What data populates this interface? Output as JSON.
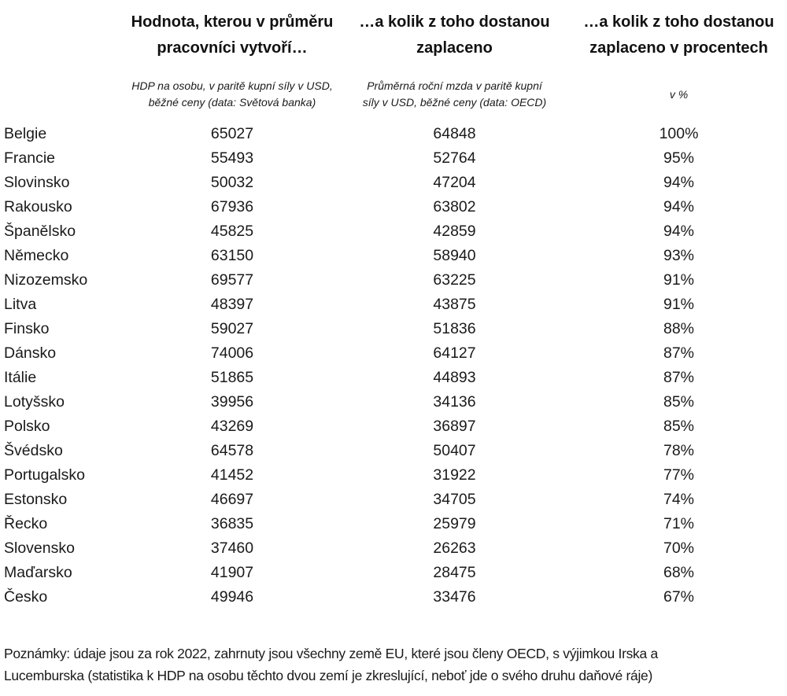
{
  "chart_data": {
    "type": "table",
    "column_headers": [
      {
        "title_lines": [
          "Hodnota, kterou v průměru",
          "pracovníci vytvoří…"
        ],
        "subtitle_lines": [
          "HDP na osobu, v paritě kupní síly v USD,",
          "běžné ceny (data: Světová banka)"
        ]
      },
      {
        "title_lines": [
          "…a kolik z toho dostanou",
          "zaplaceno"
        ],
        "subtitle_lines": [
          "Průměrná roční mzda v paritě kupní",
          "síly v USD, běžné ceny (data: OECD)"
        ]
      },
      {
        "title_lines": [
          "…a kolik z toho dostanou",
          "zaplaceno v procentech"
        ],
        "subtitle_lines": [
          "v %"
        ]
      }
    ],
    "rows": [
      {
        "country": "Belgie",
        "gdp": 65027,
        "wage": 64848,
        "pct": "100%"
      },
      {
        "country": "Francie",
        "gdp": 55493,
        "wage": 52764,
        "pct": "95%"
      },
      {
        "country": "Slovinsko",
        "gdp": 50032,
        "wage": 47204,
        "pct": "94%"
      },
      {
        "country": "Rakousko",
        "gdp": 67936,
        "wage": 63802,
        "pct": "94%"
      },
      {
        "country": "Španělsko",
        "gdp": 45825,
        "wage": 42859,
        "pct": "94%"
      },
      {
        "country": "Německo",
        "gdp": 63150,
        "wage": 58940,
        "pct": "93%"
      },
      {
        "country": "Nizozemsko",
        "gdp": 69577,
        "wage": 63225,
        "pct": "91%"
      },
      {
        "country": "Litva",
        "gdp": 48397,
        "wage": 43875,
        "pct": "91%"
      },
      {
        "country": "Finsko",
        "gdp": 59027,
        "wage": 51836,
        "pct": "88%"
      },
      {
        "country": "Dánsko",
        "gdp": 74006,
        "wage": 64127,
        "pct": "87%"
      },
      {
        "country": "Itálie",
        "gdp": 51865,
        "wage": 44893,
        "pct": "87%"
      },
      {
        "country": "Lotyšsko",
        "gdp": 39956,
        "wage": 34136,
        "pct": "85%"
      },
      {
        "country": "Polsko",
        "gdp": 43269,
        "wage": 36897,
        "pct": "85%"
      },
      {
        "country": "Švédsko",
        "gdp": 64578,
        "wage": 50407,
        "pct": "78%"
      },
      {
        "country": "Portugalsko",
        "gdp": 41452,
        "wage": 31922,
        "pct": "77%"
      },
      {
        "country": "Estonsko",
        "gdp": 46697,
        "wage": 34705,
        "pct": "74%"
      },
      {
        "country": "Řecko",
        "gdp": 36835,
        "wage": 25979,
        "pct": "71%"
      },
      {
        "country": "Slovensko",
        "gdp": 37460,
        "wage": 26263,
        "pct": "70%"
      },
      {
        "country": "Maďarsko",
        "gdp": 41907,
        "wage": 28475,
        "pct": "68%"
      },
      {
        "country": "Česko",
        "gdp": 49946,
        "wage": 33476,
        "pct": "67%"
      }
    ],
    "notes_lines": [
      "Poznámky: údaje jsou za rok 2022, zahrnuty jsou všechny země EU, které jsou členy OECD, s výjimkou Irska a",
      "Lucemburska (statistika k HDP na osobu těchto dvou zemí je zkreslující, neboť jde o svého druhu daňové ráje)"
    ],
    "text_color": "#1a1a1a",
    "background_color": "#ffffff"
  }
}
